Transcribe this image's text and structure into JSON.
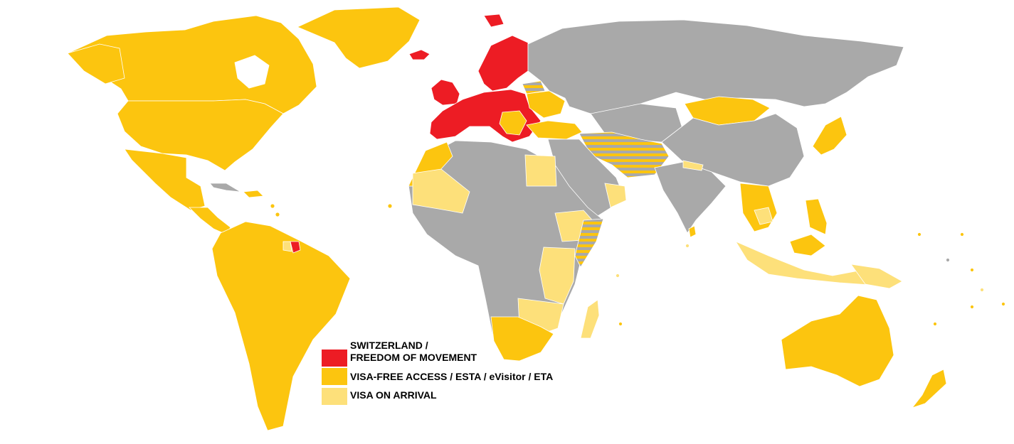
{
  "colors": {
    "freedom_of_movement": "#ed1c24",
    "visa_free": "#fcc50f",
    "visa_on_arrival": "#fde07a",
    "visa_required": "#a9a9a9",
    "background": "#ffffff",
    "border": "#ffffff"
  },
  "legend": {
    "items": [
      {
        "key": "freedom_of_movement",
        "label_lines": [
          "SWITZERLAND /",
          "FREEDOM OF MOVEMENT"
        ]
      },
      {
        "key": "visa_free",
        "label_lines": [
          "VISA-FREE ACCESS / ESTA / eVisitor / ETA"
        ]
      },
      {
        "key": "visa_on_arrival",
        "label_lines": [
          "VISA ON ARRIVAL"
        ]
      }
    ]
  }
}
